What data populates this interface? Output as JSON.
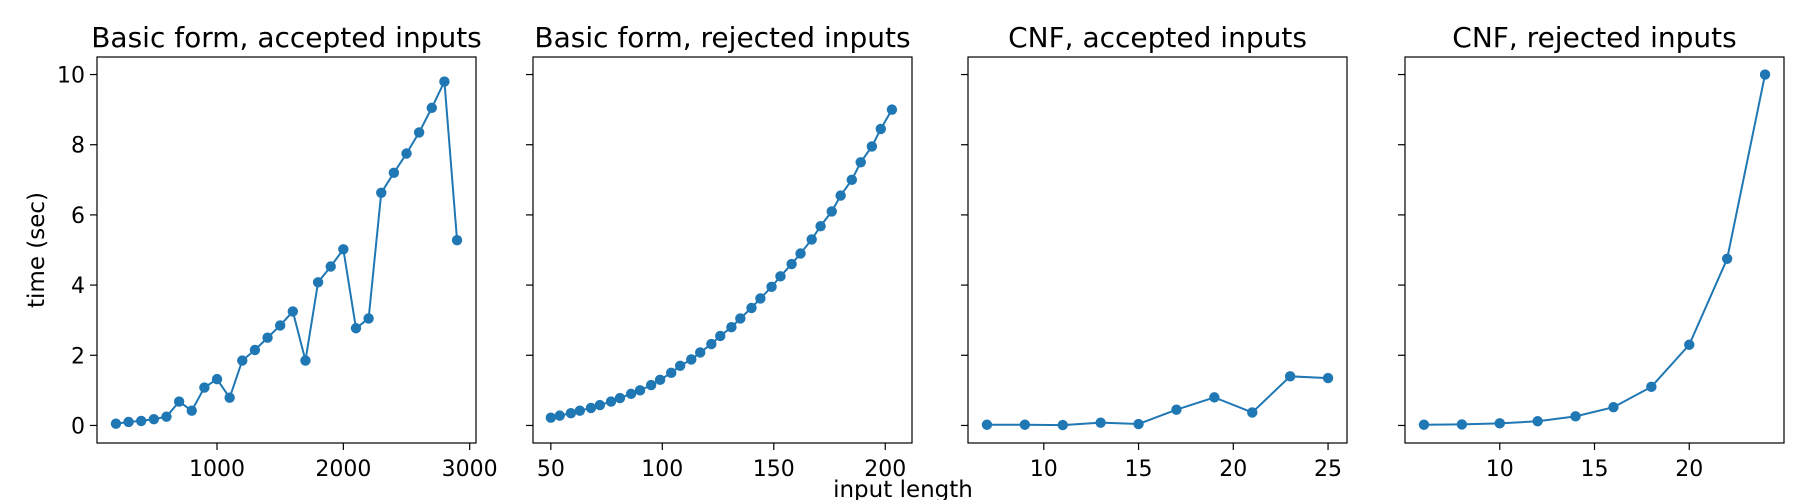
{
  "figure": {
    "shared_xlabel": "input length",
    "shared_ylabel": "time (sec)"
  },
  "chart_data": [
    {
      "type": "line",
      "title": "Basic form, accepted inputs",
      "xlabel": "",
      "ylabel": "time (sec)",
      "xlim": [
        50,
        3050
      ],
      "ylim": [
        -0.5,
        10.5
      ],
      "xticks": [
        1000,
        2000,
        3000
      ],
      "yticks": [
        0,
        2,
        4,
        6,
        8,
        10
      ],
      "grid": false,
      "color": "#1f77b4",
      "marker": "circle",
      "series": [
        {
          "x": [
            200,
            300,
            400,
            500,
            600,
            700,
            800,
            900,
            1000,
            1100,
            1200,
            1300,
            1400,
            1500,
            1600,
            1700,
            1800,
            1900,
            2000,
            2100,
            2200,
            2300,
            2400,
            2500,
            2600,
            2700,
            2800,
            2900
          ],
          "y": [
            0.05,
            0.1,
            0.13,
            0.18,
            0.25,
            0.68,
            0.42,
            1.08,
            1.32,
            0.79,
            1.85,
            2.15,
            2.5,
            2.85,
            3.25,
            1.85,
            4.08,
            4.53,
            5.02,
            2.77,
            3.05,
            6.63,
            7.2,
            7.75,
            8.35,
            9.05,
            9.8,
            5.28
          ]
        }
      ]
    },
    {
      "type": "line",
      "title": "Basic form, rejected inputs",
      "xlabel": "",
      "ylabel": "",
      "xlim": [
        42,
        212
      ],
      "ylim": [
        -0.5,
        10.5
      ],
      "xticks": [
        50,
        100,
        150,
        200
      ],
      "yticks": [
        0,
        2,
        4,
        6,
        8,
        10
      ],
      "grid": false,
      "color": "#1f77b4",
      "marker": "circle",
      "series": [
        {
          "x": [
            50,
            54,
            59,
            63,
            68,
            72,
            77,
            81,
            86,
            90,
            95,
            99,
            104,
            108,
            113,
            117,
            122,
            126,
            131,
            135,
            140,
            144,
            149,
            153,
            158,
            162,
            167,
            171,
            176,
            180,
            185,
            189,
            194,
            198,
            203
          ],
          "y": [
            0.22,
            0.28,
            0.35,
            0.42,
            0.5,
            0.58,
            0.68,
            0.78,
            0.9,
            1.0,
            1.15,
            1.3,
            1.5,
            1.7,
            1.88,
            2.08,
            2.32,
            2.55,
            2.8,
            3.05,
            3.35,
            3.62,
            3.95,
            4.25,
            4.6,
            4.9,
            5.3,
            5.68,
            6.1,
            6.55,
            7.0,
            7.5,
            7.95,
            8.45,
            9.0
          ]
        }
      ]
    },
    {
      "type": "line",
      "title": "CNF, accepted inputs",
      "xlabel": "",
      "ylabel": "",
      "xlim": [
        6,
        26
      ],
      "ylim": [
        -0.5,
        10.5
      ],
      "xticks": [
        10,
        15,
        20,
        25
      ],
      "yticks": [
        0,
        2,
        4,
        6,
        8,
        10
      ],
      "grid": false,
      "color": "#1f77b4",
      "marker": "circle",
      "series": [
        {
          "x": [
            7,
            9,
            11,
            13,
            15,
            17,
            19,
            21,
            23,
            25
          ],
          "y": [
            0.02,
            0.02,
            0.01,
            0.08,
            0.04,
            0.45,
            0.8,
            0.37,
            1.4,
            1.35
          ]
        }
      ]
    },
    {
      "type": "line",
      "title": "CNF, rejected inputs",
      "xlabel": "",
      "ylabel": "",
      "xlim": [
        5,
        25
      ],
      "ylim": [
        -0.5,
        10.5
      ],
      "xticks": [
        10,
        15,
        20
      ],
      "yticks": [
        0,
        2,
        4,
        6,
        8,
        10
      ],
      "grid": false,
      "color": "#1f77b4",
      "marker": "circle",
      "series": [
        {
          "x": [
            6,
            8,
            10,
            12,
            14,
            16,
            18,
            20,
            22,
            24
          ],
          "y": [
            0.02,
            0.03,
            0.06,
            0.12,
            0.26,
            0.52,
            1.1,
            2.3,
            4.75,
            10.0
          ]
        }
      ]
    }
  ]
}
